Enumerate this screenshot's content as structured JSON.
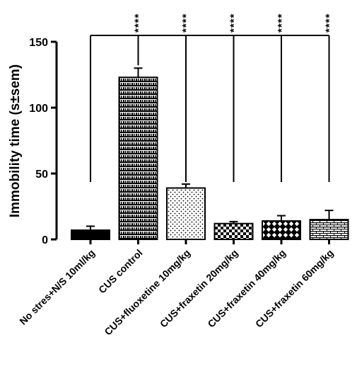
{
  "chart_data": {
    "type": "bar",
    "title": "",
    "xlabel": "",
    "ylabel": "Immobility time (s±sem)",
    "ylim": [
      0,
      150
    ],
    "yticks": [
      0,
      50,
      100,
      150
    ],
    "grid": false,
    "categories": [
      "No stres+N/S 10ml/kg",
      "CUS control",
      "CUS+fluoxetine 10mg/kg",
      "CUS+fraxetin 20mg/kg",
      "CUS+fraxetin 40mg/kg",
      "CUS+fraxetin 60mg/kg"
    ],
    "values": [
      7,
      123,
      39,
      12,
      14,
      15
    ],
    "errors": [
      3,
      7,
      3,
      1.5,
      4,
      7
    ],
    "fill_patterns": [
      "solid",
      "brick",
      "dots",
      "checker",
      "diamond",
      "hbrick"
    ],
    "significance": {
      "reference": "CUS control",
      "marks": [
        "****",
        "****",
        "****",
        "****",
        "****"
      ],
      "targets": [
        "No stres+N/S 10ml/kg",
        "CUS+fluoxetine 10mg/kg",
        "CUS+fraxetin 20mg/kg",
        "CUS+fraxetin 40mg/kg",
        "CUS+fraxetin 60mg/kg"
      ]
    }
  }
}
